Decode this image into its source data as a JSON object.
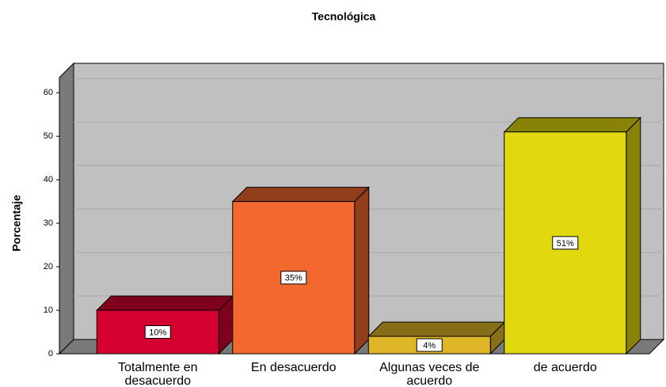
{
  "chart_data": {
    "type": "bar3d",
    "title": "Tecnológica",
    "y_label": "Porcentaje",
    "categories": [
      "Totalmente en desacuerdo",
      "En desacuerdo",
      "Algunas veces de acuerdo",
      "de acuerdo"
    ],
    "values": [
      10,
      35,
      4,
      51
    ],
    "value_labels": [
      "10%",
      "35%",
      "4%",
      "51%"
    ],
    "colors": [
      "#d4002f",
      "#f3682e",
      "#dfb627",
      "#e2d80f"
    ],
    "ylim": [
      0,
      63.5
    ],
    "yticks": [
      0,
      10,
      20,
      30,
      40,
      50,
      60
    ],
    "grid": true
  }
}
